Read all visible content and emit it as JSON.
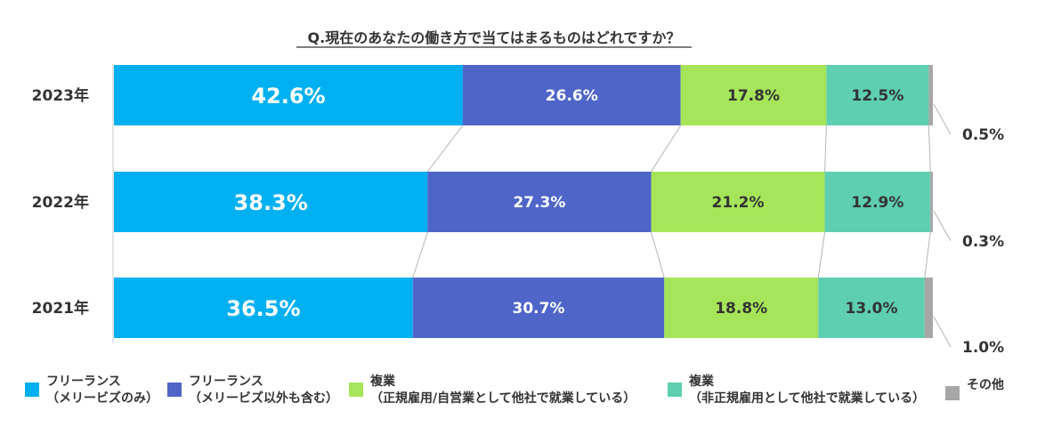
{
  "chart_data": {
    "type": "bar",
    "stacked": true,
    "orientation": "horizontal",
    "normalized_percent": true,
    "title": "Q.現在のあなたの働き方で当てはまるものはどれですか？",
    "categories": [
      "2023年",
      "2022年",
      "2021年"
    ],
    "series": [
      {
        "name": "フリーランス（メリービズのみ）",
        "legend_lines": [
          "フリーランス",
          "（メリービズのみ）"
        ],
        "color": "#00b0f0",
        "values": [
          42.6,
          38.3,
          36.5
        ],
        "labels": [
          "42.6%",
          "38.3%",
          "36.5%"
        ]
      },
      {
        "name": "フリーランス（メリービズ以外も含む）",
        "legend_lines": [
          "フリーランス",
          "（メリービズ以外も含む）"
        ],
        "color": "#4f65c8",
        "values": [
          26.6,
          27.3,
          30.7
        ],
        "labels": [
          "26.6%",
          "27.3%",
          "30.7%"
        ]
      },
      {
        "name": "複業（正規雇用/自営業として他社で就業している）",
        "legend_lines": [
          "複業",
          "（正規雇用/自営業として他社で就業している）"
        ],
        "color": "#a6e55a",
        "values": [
          17.8,
          21.2,
          18.8
        ],
        "labels": [
          "17.8%",
          "21.2%",
          "18.8%"
        ]
      },
      {
        "name": "複業（非正規雇用として他社で就業している）",
        "legend_lines": [
          "複業",
          "（非正規雇用として他社で就業している）"
        ],
        "color": "#5ecfb0",
        "values": [
          12.5,
          12.9,
          13.0
        ],
        "labels": [
          "12.5%",
          "12.9%",
          "13.0%"
        ]
      },
      {
        "name": "その他",
        "legend_lines": [
          "その他"
        ],
        "color": "#a6a6a6",
        "values": [
          0.5,
          0.3,
          1.0
        ],
        "labels": [
          "0.5%",
          "0.3%",
          "1.0%"
        ]
      }
    ],
    "xlim": [
      0,
      100
    ],
    "legend_position": "bottom",
    "grid": false
  }
}
